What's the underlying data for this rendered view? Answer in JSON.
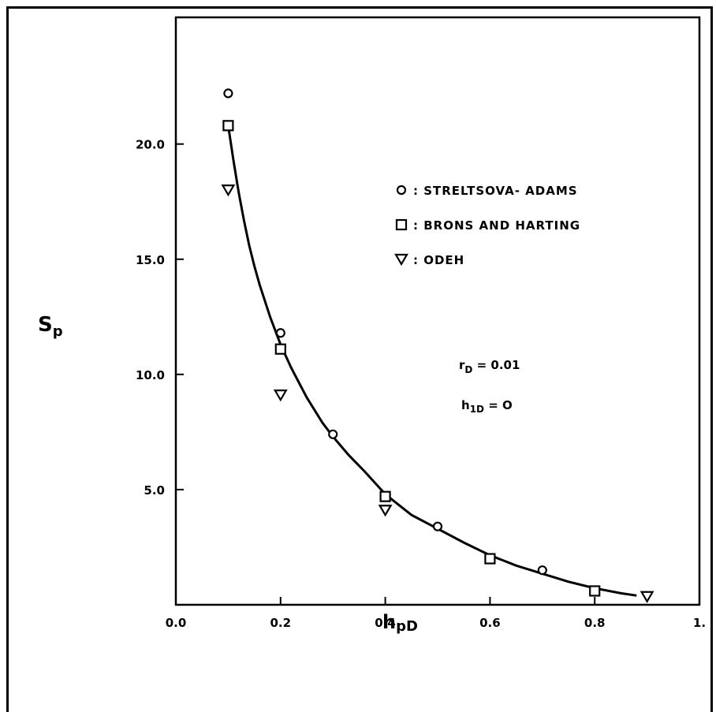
{
  "chart_data": {
    "type": "scatter",
    "xlabel": "h",
    "xlabel_sub": "pD",
    "ylabel": "S",
    "ylabel_sub": "p",
    "xlim": [
      0.0,
      1.0
    ],
    "ylim": [
      0.0,
      25.5
    ],
    "x_ticks": [
      0.0,
      0.2,
      0.4,
      0.6,
      0.8,
      1.0
    ],
    "x_tick_labels": [
      "0.0",
      "0.2",
      "0.4",
      "0.6",
      "0.8",
      "1."
    ],
    "y_ticks": [
      5.0,
      10.0,
      15.0,
      20.0
    ],
    "y_tick_labels": [
      "5.0",
      "10.0",
      "15.0",
      "20.0"
    ],
    "grid": false,
    "legend_position": "top-right",
    "series": [
      {
        "name": "STRELTSOVA- ADAMS",
        "marker": "circle",
        "x": [
          0.1,
          0.2,
          0.3,
          0.5,
          0.7
        ],
        "y": [
          22.2,
          11.8,
          7.4,
          3.4,
          1.5
        ]
      },
      {
        "name": "BRONS AND HARTING",
        "marker": "square",
        "x": [
          0.1,
          0.2,
          0.4,
          0.6,
          0.8
        ],
        "y": [
          20.8,
          11.1,
          4.7,
          2.0,
          0.6
        ]
      },
      {
        "name": "ODEH",
        "marker": "triangle-down",
        "x": [
          0.1,
          0.2,
          0.4,
          0.9
        ],
        "y": [
          18.0,
          9.1,
          4.1,
          0.35
        ]
      }
    ],
    "fit_curve": {
      "x": [
        0.1,
        0.11,
        0.12,
        0.13,
        0.14,
        0.15,
        0.16,
        0.18,
        0.2,
        0.22,
        0.25,
        0.28,
        0.3,
        0.33,
        0.36,
        0.4,
        0.45,
        0.5,
        0.55,
        0.6,
        0.65,
        0.7,
        0.75,
        0.8,
        0.85,
        0.88
      ],
      "y": [
        20.8,
        19.3,
        17.9,
        16.7,
        15.6,
        14.7,
        13.9,
        12.5,
        11.3,
        10.3,
        9.0,
        7.9,
        7.3,
        6.5,
        5.8,
        4.8,
        3.9,
        3.3,
        2.7,
        2.15,
        1.7,
        1.35,
        1.0,
        0.72,
        0.5,
        0.4
      ]
    },
    "annotations": [
      {
        "main": "r",
        "sub": "D",
        "rest": " = 0.01"
      },
      {
        "main": "h",
        "sub": "1D",
        "rest": " = O"
      }
    ],
    "legend": [
      {
        "marker": "circle",
        "label": ": STRELTSOVA- ADAMS"
      },
      {
        "marker": "square",
        "label": ": BRONS AND HARTING"
      },
      {
        "marker": "triangle-down",
        "label": ": ODEH"
      }
    ]
  }
}
